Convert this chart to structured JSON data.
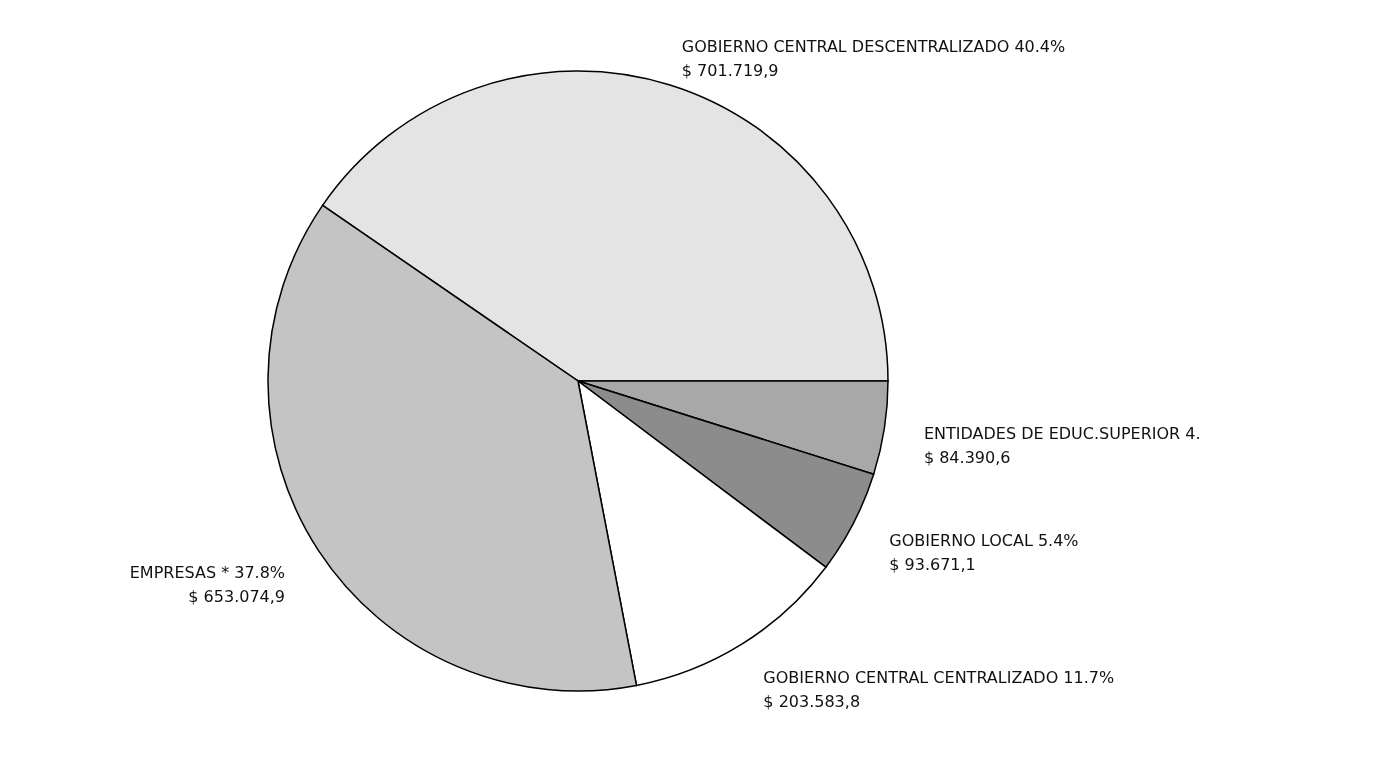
{
  "chart_data": {
    "type": "pie",
    "categories": [
      "GOBIERNO CENTRAL DESCENTRALIZADO 40.4%",
      "ENTIDADES DE EDUC.SUPERIOR 4.",
      "GOBIERNO LOCAL 5.4%",
      "GOBIERNO CENTRAL CENTRALIZADO 11.7%",
      "EMPRESAS * 37.8%"
    ],
    "values": [
      701719.9,
      84390.6,
      93671.1,
      203583.8,
      653074.9
    ],
    "value_labels": [
      "$ 701.719,9",
      "$ 84.390,6",
      "$ 93.671,1",
      "$ 203.583,8",
      "$ 653.074,9"
    ],
    "colors": [
      "#e4e4e4",
      "#a8a8a8",
      "#8c8c8c",
      "#ffffff",
      "#c4c4c4"
    ]
  }
}
